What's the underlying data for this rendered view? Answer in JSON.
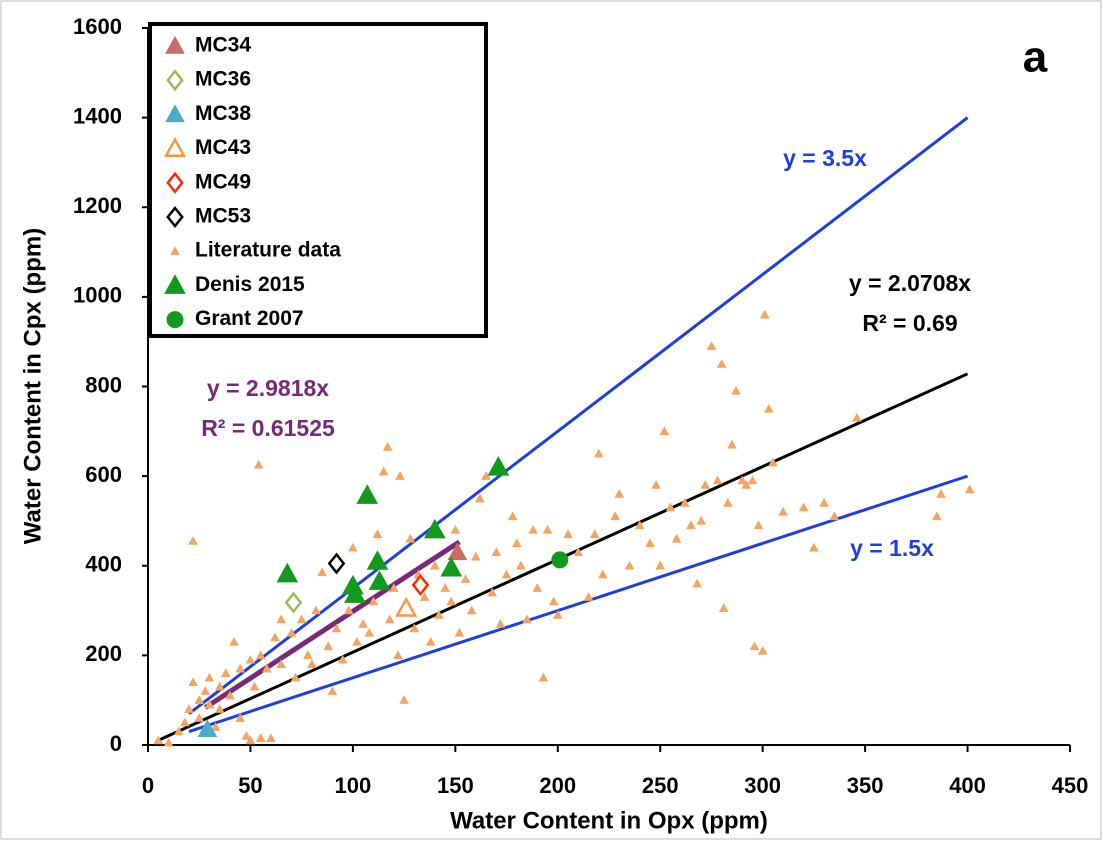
{
  "chart_data": {
    "type": "scatter",
    "panel_label": "a",
    "x_label": "Water Content in Opx (ppm)",
    "y_label": "Water Content in Cpx (ppm)",
    "xlim": [
      0,
      450
    ],
    "xticks": [
      0,
      50,
      100,
      150,
      200,
      250,
      300,
      350,
      400,
      450
    ],
    "ylim": [
      0,
      1600
    ],
    "yticks": [
      0,
      200,
      400,
      600,
      800,
      1000,
      1200,
      1400,
      1600
    ],
    "legend": "upper left",
    "series": [
      {
        "name": "MC34",
        "color": "#cc6a66",
        "marker": "triangle",
        "filled": true,
        "size": 9,
        "x": [
          151
        ],
        "values": [
          430
        ]
      },
      {
        "name": "MC36",
        "color": "#9bbb59",
        "marker": "diamond",
        "filled": false,
        "size": 9,
        "x": [
          71
        ],
        "values": [
          318
        ]
      },
      {
        "name": "MC38",
        "color": "#4bacc6",
        "marker": "triangle",
        "filled": true,
        "size": 9,
        "x": [
          29
        ],
        "values": [
          35
        ]
      },
      {
        "name": "MC43",
        "color": "#f79646",
        "marker": "triangle",
        "filled": false,
        "size": 9,
        "x": [
          126
        ],
        "values": [
          305
        ]
      },
      {
        "name": "MC49",
        "color": "#ff2a00",
        "marker": "diamond",
        "filled": false,
        "size": 9,
        "x": [
          133
        ],
        "values": [
          357
        ]
      },
      {
        "name": "MC53",
        "color": "#000000",
        "marker": "diamond",
        "filled": false,
        "size": 9,
        "x": [
          92
        ],
        "values": [
          405
        ]
      },
      {
        "name": "Literature data",
        "color": "#f4a462",
        "marker": "triangle",
        "filled": true,
        "size": 4,
        "x": [
          5,
          10,
          15,
          18,
          20,
          22,
          22,
          25,
          25,
          28,
          30,
          30,
          33,
          35,
          35,
          38,
          40,
          42,
          45,
          45,
          48,
          50,
          50,
          52,
          54,
          55,
          55,
          58,
          60,
          62,
          65,
          65,
          70,
          72,
          75,
          78,
          80,
          82,
          85,
          88,
          90,
          92,
          95,
          98,
          100,
          102,
          105,
          108,
          110,
          112,
          115,
          117,
          118,
          120,
          122,
          123,
          125,
          128,
          130,
          132,
          135,
          138,
          140,
          142,
          145,
          148,
          150,
          152,
          155,
          158,
          160,
          162,
          165,
          168,
          170,
          172,
          175,
          178,
          180,
          182,
          185,
          188,
          190,
          193,
          195,
          198,
          200,
          205,
          210,
          215,
          218,
          220,
          222,
          228,
          230,
          235,
          240,
          245,
          248,
          250,
          252,
          255,
          258,
          262,
          265,
          268,
          270,
          272,
          275,
          278,
          280,
          281,
          283,
          285,
          287,
          290,
          292,
          295,
          296,
          298,
          300,
          301,
          303,
          305,
          310,
          320,
          325,
          330,
          335,
          346,
          385,
          387,
          401
        ],
        "values": [
          10,
          5,
          30,
          50,
          80,
          455,
          140,
          100,
          60,
          120,
          90,
          150,
          40,
          130,
          80,
          160,
          110,
          230,
          170,
          60,
          20,
          10,
          190,
          130,
          625,
          200,
          15,
          170,
          15,
          240,
          280,
          180,
          250,
          150,
          280,
          200,
          180,
          300,
          385,
          220,
          120,
          260,
          190,
          300,
          440,
          230,
          270,
          250,
          320,
          470,
          610,
          665,
          280,
          350,
          200,
          600,
          100,
          460,
          260,
          380,
          330,
          230,
          400,
          290,
          350,
          320,
          480,
          250,
          370,
          300,
          420,
          550,
          600,
          340,
          430,
          270,
          380,
          510,
          450,
          400,
          280,
          480,
          350,
          150,
          480,
          320,
          290,
          470,
          430,
          330,
          470,
          650,
          380,
          510,
          560,
          400,
          490,
          450,
          580,
          400,
          700,
          530,
          460,
          540,
          490,
          360,
          500,
          580,
          890,
          590,
          850,
          305,
          540,
          670,
          790,
          590,
          580,
          590,
          220,
          490,
          210,
          960,
          750,
          630,
          520,
          530,
          440,
          540,
          510,
          730,
          510,
          560,
          570
        ]
      },
      {
        "name": "Denis 2015",
        "color": "#139a1c",
        "marker": "triangle",
        "filled": true,
        "size": 10,
        "x": [
          68,
          107,
          100,
          101,
          112,
          113,
          140,
          148,
          171
        ],
        "values": [
          382,
          557,
          355,
          336,
          410,
          365,
          480,
          395,
          620
        ]
      },
      {
        "name": "Grant 2007",
        "color": "#139a1c",
        "marker": "circle",
        "filled": true,
        "size": 8,
        "x": [
          201
        ],
        "values": [
          413
        ]
      }
    ],
    "trendlines": [
      {
        "label": "y = 3.5x",
        "color": "#1f3ee0",
        "x": [
          20,
          400
        ],
        "values": [
          70,
          1400
        ]
      },
      {
        "label": "y = 2.0708x",
        "r2": "R² = 0.69",
        "color": "#000000",
        "x": [
          5,
          400
        ],
        "values": [
          10.354,
          828.32
        ]
      },
      {
        "label": "y = 2.9818x",
        "r2": "R² = 0.61525",
        "color": "#772a7a",
        "x": [
          28,
          152
        ],
        "values": [
          83.49,
          453.23
        ]
      },
      {
        "label": "y = 1.5x",
        "color": "#1f3ee0",
        "x": [
          20,
          400
        ],
        "values": [
          30,
          600
        ]
      }
    ]
  }
}
